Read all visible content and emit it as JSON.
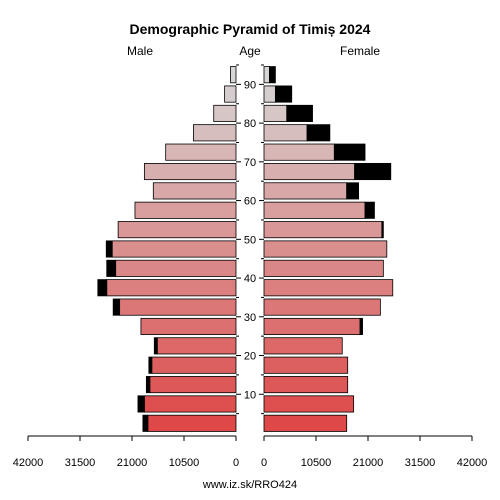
{
  "chart_data": {
    "type": "bar",
    "title": "Demographic Pyramid of Timiș 2024",
    "left_label": "Male",
    "center_label": "Age",
    "right_label": "Female",
    "footer": "www.iz.sk/RRO424",
    "age_ticks": [
      "10",
      "20",
      "30",
      "40",
      "50",
      "60",
      "70",
      "80",
      "90"
    ],
    "age_tick_positions": [
      10,
      20,
      30,
      40,
      50,
      60,
      70,
      80,
      90
    ],
    "x_ticks_male": [
      "42000",
      "31500",
      "21000",
      "10500",
      "0"
    ],
    "x_ticks_female": [
      "0",
      "10500",
      "21000",
      "31500",
      "42000"
    ],
    "xlim": [
      0,
      42000
    ],
    "age_groups": [
      "0-4",
      "5-9",
      "10-14",
      "15-19",
      "20-24",
      "25-29",
      "30-34",
      "35-39",
      "40-44",
      "45-49",
      "50-54",
      "55-59",
      "60-64",
      "65-69",
      "70-74",
      "75-79",
      "80-84",
      "85-89",
      "90+"
    ],
    "age_midpoints": [
      2,
      7,
      12,
      17,
      22,
      27,
      32,
      37,
      42,
      47,
      52,
      57,
      62,
      67,
      72,
      77,
      82,
      87,
      92
    ],
    "series": [
      {
        "name": "Male",
        "values": [
          17800,
          18500,
          17400,
          17000,
          15900,
          19200,
          23500,
          26100,
          24300,
          25000,
          23800,
          20400,
          16700,
          18500,
          14200,
          8600,
          4500,
          2300,
          1100
        ]
      },
      {
        "name": "Male excess",
        "values": [
          1000,
          1300,
          700,
          600,
          600,
          0,
          1300,
          1800,
          1800,
          1200,
          0,
          0,
          0,
          0,
          0,
          0,
          0,
          0,
          0
        ]
      },
      {
        "name": "Female",
        "values": [
          16700,
          18100,
          16900,
          16900,
          15800,
          19400,
          23500,
          26000,
          24100,
          24800,
          23800,
          20400,
          16700,
          18300,
          14200,
          8700,
          4600,
          2300,
          1100
        ]
      },
      {
        "name": "Female excess",
        "values": [
          0,
          0,
          0,
          0,
          0,
          500,
          0,
          0,
          0,
          0,
          300,
          1900,
          2400,
          7300,
          6200,
          4600,
          5200,
          3300,
          1200
        ]
      }
    ]
  }
}
